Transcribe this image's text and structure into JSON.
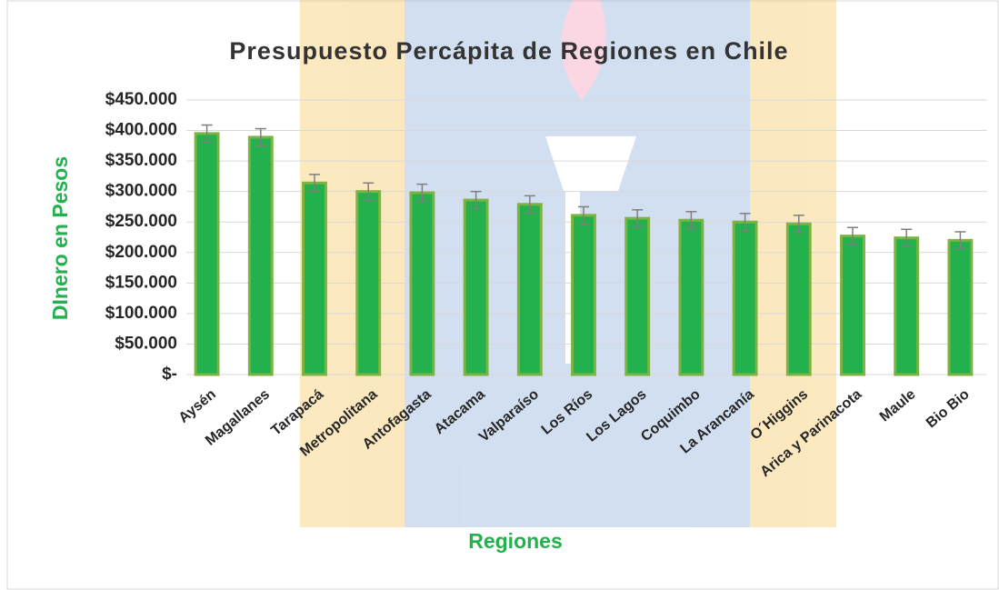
{
  "chart_data": {
    "type": "bar",
    "title": "Presupuesto Percápita de Regiones en Chile",
    "x_label": "Regiones",
    "y_label": "DInero en Pesos",
    "categories": [
      "Aysén",
      "Magallanes",
      "Tarapacá",
      "Metropolitana",
      "Antofagasta",
      "Atacama",
      "Valparaíso",
      "Los Ríos",
      "Los Lagos",
      "Coquimbo",
      "La Arancanía",
      "O´Higgins",
      "Arica y Parinacota",
      "Maule",
      "Bio Bio"
    ],
    "values": [
      395000,
      389000,
      314000,
      300000,
      298000,
      286000,
      279000,
      261000,
      256000,
      253000,
      250000,
      247000,
      227000,
      224000,
      220000
    ],
    "errors": [
      14000,
      14000,
      14000,
      14000,
      14000,
      14000,
      14000,
      14000,
      14000,
      14000,
      14000,
      14000,
      14000,
      14000,
      14000
    ],
    "color": "#22b14c",
    "edge_color": "#7cb342",
    "error_color": "#7f7f7f",
    "ylim": [
      0,
      450000
    ],
    "yticks": [
      {
        "value": 0,
        "label": "$-"
      },
      {
        "value": 50000,
        "label": "$50.000"
      },
      {
        "value": 100000,
        "label": "$100.000"
      },
      {
        "value": 150000,
        "label": "$150.000"
      },
      {
        "value": 200000,
        "label": "$200.000"
      },
      {
        "value": 250000,
        "label": "$250.000"
      },
      {
        "value": 300000,
        "label": "$300.000"
      },
      {
        "value": 350000,
        "label": "$350.000"
      },
      {
        "value": 400000,
        "label": "$400.000"
      },
      {
        "value": 450000,
        "label": "$450.000"
      }
    ],
    "grid": true
  }
}
